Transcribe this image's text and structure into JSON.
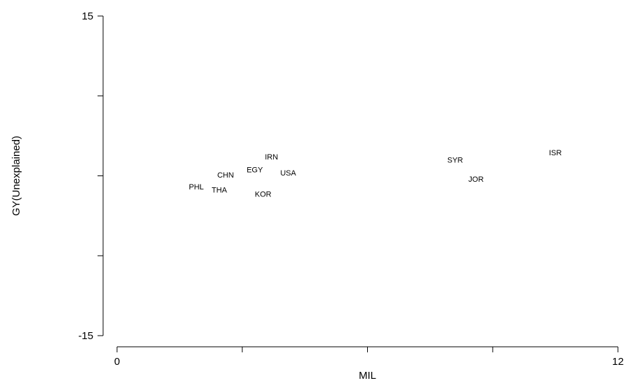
{
  "chart_data": {
    "type": "scatter",
    "xlabel": "MIL",
    "ylabel": "GY(Unexplained)",
    "xlim": [
      0,
      12
    ],
    "ylim": [
      -15,
      15
    ],
    "xticks": [
      0,
      3,
      6,
      9,
      12
    ],
    "xtick_labels": [
      "0",
      "",
      "",
      "",
      "12"
    ],
    "yticks": [
      -15,
      -7.5,
      0,
      7.5,
      15
    ],
    "ytick_labels": [
      "-15",
      "",
      "",
      "",
      "15"
    ],
    "grid": false,
    "points": [
      {
        "label": "PHL",
        "x": 1.9,
        "y": -1.0
      },
      {
        "label": "THA",
        "x": 2.45,
        "y": -1.3
      },
      {
        "label": "CHN",
        "x": 2.6,
        "y": 0.1
      },
      {
        "label": "EGY",
        "x": 3.3,
        "y": 0.6
      },
      {
        "label": "IRN",
        "x": 3.7,
        "y": 1.8
      },
      {
        "label": "USA",
        "x": 4.1,
        "y": 0.3
      },
      {
        "label": "KOR",
        "x": 3.5,
        "y": -1.7
      },
      {
        "label": "SYR",
        "x": 8.1,
        "y": 1.5
      },
      {
        "label": "JOR",
        "x": 8.6,
        "y": -0.3
      },
      {
        "label": "ISR",
        "x": 10.5,
        "y": 2.2
      }
    ]
  }
}
